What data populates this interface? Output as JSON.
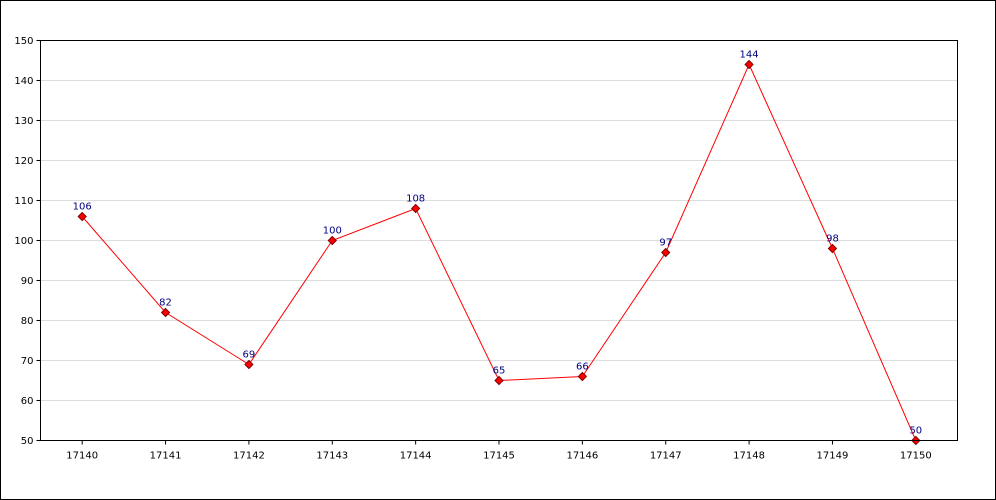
{
  "chart_data": {
    "type": "line",
    "title": "",
    "xlabel": "",
    "ylabel": "",
    "categories": [
      "17140",
      "17141",
      "17142",
      "17143",
      "17144",
      "17145",
      "17146",
      "17147",
      "17148",
      "17149",
      "17150"
    ],
    "series": [
      {
        "values": [
          106,
          82,
          69,
          100,
          108,
          65,
          66,
          97,
          144,
          98,
          50
        ],
        "color": "#ff0000",
        "marker": "diamond",
        "marker_fill": "#ff0000",
        "marker_stroke": "#800000"
      }
    ],
    "ylim": [
      50,
      150
    ],
    "yticks": [
      50,
      60,
      70,
      80,
      90,
      100,
      110,
      120,
      130,
      140,
      150
    ],
    "grid": "horizontal",
    "gridline_color": "#dddddd",
    "data_label_color": "#000080",
    "legend": "none"
  }
}
